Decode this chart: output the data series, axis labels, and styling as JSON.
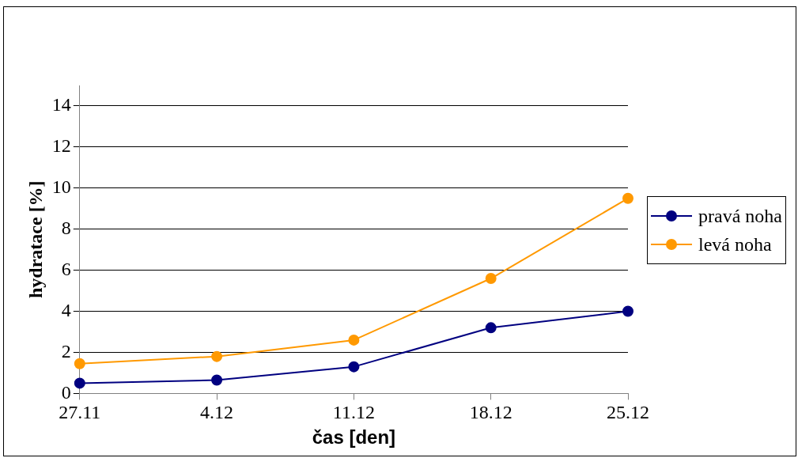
{
  "chart_data": {
    "type": "line",
    "xlabel": "čas [den]",
    "ylabel": "hydratace [%]",
    "categories": [
      "27.11",
      "4.12",
      "11.12",
      "18.12",
      "25.12"
    ],
    "series": [
      {
        "name": "pravá noha",
        "color": "#000080",
        "values": [
          0.5,
          0.65,
          1.3,
          3.2,
          4.0
        ]
      },
      {
        "name": "levá noha",
        "color": "#ff9900",
        "values": [
          1.45,
          1.8,
          2.6,
          5.6,
          9.5
        ]
      }
    ],
    "ylim": [
      0,
      15
    ],
    "yticks": [
      0,
      2,
      4,
      6,
      8,
      10,
      12,
      14
    ],
    "grid": "y",
    "legend": "right",
    "marker": "circle",
    "line_style": "solid"
  }
}
